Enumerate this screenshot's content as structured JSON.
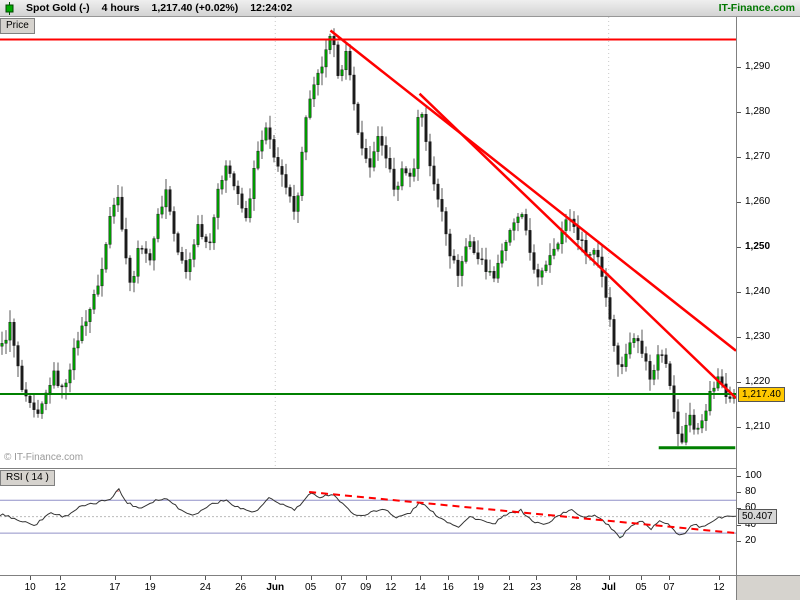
{
  "header": {
    "instrument": "Spot Gold (-)",
    "timeframe": "4 hours",
    "quote": "1,217.40 (+0.02%)",
    "time": "12:24:02",
    "brand": "IT-Finance.com"
  },
  "price_panel": {
    "tab": "Price",
    "watermark": "© IT-Finance.com",
    "price_tag": "1,217.40"
  },
  "rsi_panel": {
    "tab": "RSI ( 14 )",
    "value_tag": "50.407"
  },
  "colors": {
    "candle_up": "#009a00",
    "candle_down": "#1b1b1b",
    "wick": "#111111",
    "line_red": "#ff0000",
    "line_green": "#008000",
    "brand_green": "#007700",
    "tag_yellow": "#ffc800",
    "rsi_line": "#333333",
    "level_purple": "#9090c8",
    "grid_grey": "#c8c8c8"
  },
  "x_axis": {
    "labels": [
      {
        "t": 0.041,
        "text": "10"
      },
      {
        "t": 0.082,
        "text": "12"
      },
      {
        "t": 0.156,
        "text": "17"
      },
      {
        "t": 0.204,
        "text": "19"
      },
      {
        "t": 0.279,
        "text": "24"
      },
      {
        "t": 0.327,
        "text": "26"
      },
      {
        "t": 0.374,
        "text": "Jun",
        "bold": true
      },
      {
        "t": 0.422,
        "text": "05"
      },
      {
        "t": 0.463,
        "text": "07"
      },
      {
        "t": 0.497,
        "text": "09"
      },
      {
        "t": 0.531,
        "text": "12"
      },
      {
        "t": 0.571,
        "text": "14"
      },
      {
        "t": 0.609,
        "text": "16"
      },
      {
        "t": 0.65,
        "text": "19"
      },
      {
        "t": 0.691,
        "text": "21"
      },
      {
        "t": 0.728,
        "text": "23"
      },
      {
        "t": 0.782,
        "text": "28"
      },
      {
        "t": 0.827,
        "text": "Jul",
        "bold": true
      },
      {
        "t": 0.871,
        "text": "05"
      },
      {
        "t": 0.909,
        "text": "07"
      },
      {
        "t": 0.977,
        "text": "12"
      }
    ]
  },
  "chart_data": [
    {
      "type": "candlestick",
      "title": "Spot Gold 4 hours",
      "candle_count": 184,
      "last_close": 1217.4,
      "y_axis": {
        "min": 1201,
        "max": 1301,
        "ticks": [
          {
            "label": "1,290",
            "value": 1290
          },
          {
            "label": "1,280",
            "value": 1280
          },
          {
            "label": "1,270",
            "value": 1270
          },
          {
            "label": "1,260",
            "value": 1260
          },
          {
            "label": "1,250",
            "value": 1250,
            "bold": true
          },
          {
            "label": "1,240",
            "value": 1240
          },
          {
            "label": "1,230",
            "value": 1230
          },
          {
            "label": "1,220",
            "value": 1220
          },
          {
            "label": "1,210",
            "value": 1210
          }
        ]
      },
      "month_gridlines_t": [
        0.374,
        0.827
      ],
      "overlays": {
        "resistance": 1296,
        "support": 1217.4,
        "support_short": {
          "price": 1205.5,
          "t_start": 0.895,
          "t_end": 0.999
        },
        "trendlines": [
          {
            "from": [
              0.449,
              1298
            ],
            "to": [
              1.0,
              1227
            ]
          },
          {
            "from": [
              0.57,
              1284
            ],
            "to": [
              1.0,
              1216.5
            ]
          }
        ]
      },
      "price_path": [
        [
          0.007,
          1228
        ],
        [
          0.016,
          1233
        ],
        [
          0.034,
          1217
        ],
        [
          0.054,
          1212
        ],
        [
          0.075,
          1222
        ],
        [
          0.088,
          1218
        ],
        [
          0.109,
          1230
        ],
        [
          0.129,
          1238
        ],
        [
          0.143,
          1246
        ],
        [
          0.154,
          1259
        ],
        [
          0.163,
          1262
        ],
        [
          0.173,
          1248
        ],
        [
          0.182,
          1241
        ],
        [
          0.193,
          1252
        ],
        [
          0.204,
          1246
        ],
        [
          0.218,
          1257
        ],
        [
          0.229,
          1263
        ],
        [
          0.242,
          1250
        ],
        [
          0.256,
          1244
        ],
        [
          0.272,
          1255
        ],
        [
          0.286,
          1250
        ],
        [
          0.299,
          1262
        ],
        [
          0.31,
          1269
        ],
        [
          0.324,
          1262
        ],
        [
          0.337,
          1256
        ],
        [
          0.351,
          1270
        ],
        [
          0.365,
          1276
        ],
        [
          0.378,
          1269
        ],
        [
          0.395,
          1261
        ],
        [
          0.405,
          1258
        ],
        [
          0.419,
          1280
        ],
        [
          0.433,
          1287
        ],
        [
          0.444,
          1292
        ],
        [
          0.453,
          1297
        ],
        [
          0.463,
          1288
        ],
        [
          0.473,
          1293
        ],
        [
          0.484,
          1281
        ],
        [
          0.495,
          1271
        ],
        [
          0.506,
          1268
        ],
        [
          0.517,
          1274
        ],
        [
          0.528,
          1270
        ],
        [
          0.539,
          1262
        ],
        [
          0.552,
          1268
        ],
        [
          0.563,
          1264
        ],
        [
          0.573,
          1283
        ],
        [
          0.584,
          1271
        ],
        [
          0.594,
          1262
        ],
        [
          0.604,
          1258
        ],
        [
          0.615,
          1248
        ],
        [
          0.626,
          1244
        ],
        [
          0.639,
          1252
        ],
        [
          0.65,
          1248
        ],
        [
          0.661,
          1246
        ],
        [
          0.672,
          1243
        ],
        [
          0.686,
          1250
        ],
        [
          0.699,
          1254
        ],
        [
          0.71,
          1258
        ],
        [
          0.724,
          1248
        ],
        [
          0.735,
          1242
        ],
        [
          0.748,
          1248
        ],
        [
          0.762,
          1252
        ],
        [
          0.776,
          1257
        ],
        [
          0.789,
          1252
        ],
        [
          0.803,
          1248
        ],
        [
          0.813,
          1250
        ],
        [
          0.824,
          1241
        ],
        [
          0.834,
          1232
        ],
        [
          0.844,
          1222
        ],
        [
          0.854,
          1227
        ],
        [
          0.868,
          1231
        ],
        [
          0.879,
          1225
        ],
        [
          0.888,
          1220
        ],
        [
          0.899,
          1228
        ],
        [
          0.91,
          1224
        ],
        [
          0.92,
          1211
        ],
        [
          0.929,
          1206
        ],
        [
          0.939,
          1214
        ],
        [
          0.948,
          1208
        ],
        [
          0.957,
          1212
        ],
        [
          0.969,
          1218
        ],
        [
          0.98,
          1221
        ],
        [
          0.99,
          1217.4
        ]
      ]
    },
    {
      "type": "line",
      "title": "RSI ( 14 )",
      "last_value": 50.407,
      "y_axis": {
        "min": -21,
        "max": 108,
        "ticks": [
          {
            "label": "100",
            "value": 100
          },
          {
            "label": "80",
            "value": 80
          },
          {
            "label": "60",
            "value": 60
          },
          {
            "label": "40",
            "value": 40
          },
          {
            "label": "20",
            "value": 20
          }
        ]
      },
      "levels": [
        {
          "value": 70,
          "color": "#9090c8"
        },
        {
          "value": 50,
          "color": "#bbbbbb",
          "dash": "2,2"
        },
        {
          "value": 30,
          "color": "#9090c8"
        }
      ],
      "zones": [
        {
          "threshold": 80,
          "dir": "above",
          "color": "rgba(235,120,120,0.65)"
        },
        {
          "threshold": 27,
          "dir": "below",
          "color": "rgba(110,190,165,0.65)"
        }
      ],
      "trendline": {
        "from": [
          0.42,
          80
        ],
        "to": [
          1.0,
          30
        ],
        "dash": "7,5"
      },
      "rsi_path": [
        [
          0.007,
          52
        ],
        [
          0.027,
          45
        ],
        [
          0.048,
          40
        ],
        [
          0.068,
          55
        ],
        [
          0.088,
          50
        ],
        [
          0.109,
          62
        ],
        [
          0.129,
          66
        ],
        [
          0.15,
          72
        ],
        [
          0.161,
          84
        ],
        [
          0.171,
          68
        ],
        [
          0.19,
          60
        ],
        [
          0.211,
          70
        ],
        [
          0.229,
          72
        ],
        [
          0.245,
          58
        ],
        [
          0.265,
          52
        ],
        [
          0.286,
          65
        ],
        [
          0.306,
          70
        ],
        [
          0.327,
          60
        ],
        [
          0.347,
          55
        ],
        [
          0.365,
          72
        ],
        [
          0.381,
          66
        ],
        [
          0.401,
          58
        ],
        [
          0.422,
          78
        ],
        [
          0.435,
          74
        ],
        [
          0.452,
          78
        ],
        [
          0.469,
          62
        ],
        [
          0.487,
          50
        ],
        [
          0.503,
          55
        ],
        [
          0.524,
          60
        ],
        [
          0.537,
          48
        ],
        [
          0.558,
          55
        ],
        [
          0.571,
          68
        ],
        [
          0.588,
          55
        ],
        [
          0.605,
          45
        ],
        [
          0.623,
          38
        ],
        [
          0.639,
          50
        ],
        [
          0.656,
          45
        ],
        [
          0.669,
          40
        ],
        [
          0.687,
          52
        ],
        [
          0.707,
          58
        ],
        [
          0.724,
          44
        ],
        [
          0.741,
          40
        ],
        [
          0.759,
          52
        ],
        [
          0.776,
          58
        ],
        [
          0.792,
          50
        ],
        [
          0.81,
          52
        ],
        [
          0.823,
          42
        ],
        [
          0.832,
          35
        ],
        [
          0.843,
          22
        ],
        [
          0.857,
          40
        ],
        [
          0.871,
          45
        ],
        [
          0.884,
          35
        ],
        [
          0.898,
          45
        ],
        [
          0.909,
          40
        ],
        [
          0.92,
          28
        ],
        [
          0.93,
          30
        ],
        [
          0.941,
          42
        ],
        [
          0.952,
          36
        ],
        [
          0.963,
          42
        ],
        [
          0.974,
          48
        ],
        [
          0.989,
          50.4
        ]
      ]
    }
  ]
}
